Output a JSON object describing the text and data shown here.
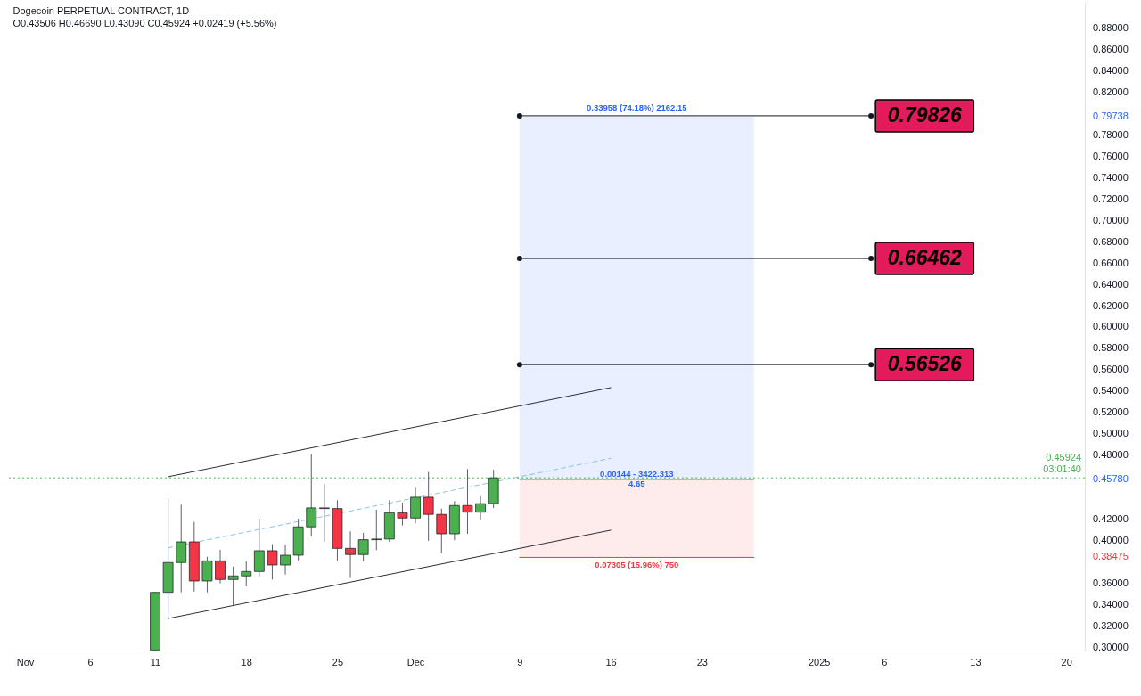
{
  "chart_data": {
    "type": "candlestick",
    "title": "Dogecoin PERPETUAL CONTRACT, 1D",
    "subtitle": "O0.43506 H0.46690 L0.43090 C0.45924 +0.02419 (+5.56%)",
    "x": [
      "2024-11-11",
      "2024-11-12",
      "2024-11-13",
      "2024-11-14",
      "2024-11-15",
      "2024-11-16",
      "2024-11-17",
      "2024-11-18",
      "2024-11-19",
      "2024-11-20",
      "2024-11-21",
      "2024-11-22",
      "2024-11-23",
      "2024-11-24",
      "2024-11-25",
      "2024-11-26",
      "2024-11-27",
      "2024-11-28",
      "2024-11-29",
      "2024-11-30",
      "2024-12-01",
      "2024-12-02",
      "2024-12-03",
      "2024-12-04",
      "2024-12-05",
      "2024-12-06",
      "2024-12-07"
    ],
    "ohlc": [
      [
        0.298,
        0.352,
        0.298,
        0.352
      ],
      [
        0.352,
        0.4397,
        0.327,
        0.3799
      ],
      [
        0.3799,
        0.4341,
        0.352,
        0.3993
      ],
      [
        0.3993,
        0.418,
        0.3528,
        0.3626
      ],
      [
        0.3626,
        0.3854,
        0.352,
        0.3815
      ],
      [
        0.3815,
        0.3918,
        0.3604,
        0.364
      ],
      [
        0.364,
        0.3762,
        0.3395,
        0.3674
      ],
      [
        0.3674,
        0.3812,
        0.3576,
        0.3715
      ],
      [
        0.3715,
        0.421,
        0.367,
        0.391
      ],
      [
        0.391,
        0.3971,
        0.364,
        0.3776
      ],
      [
        0.3776,
        0.3966,
        0.3687,
        0.3868
      ],
      [
        0.3868,
        0.421,
        0.3818,
        0.4133
      ],
      [
        0.4133,
        0.4814,
        0.4043,
        0.4311
      ],
      [
        0.4311,
        0.4536,
        0.3993,
        0.4305
      ],
      [
        0.4305,
        0.4383,
        0.3818,
        0.3932
      ],
      [
        0.3932,
        0.4091,
        0.3654,
        0.3874
      ],
      [
        0.3874,
        0.4077,
        0.3812,
        0.4013
      ],
      [
        0.4013,
        0.4294,
        0.3916,
        0.4019
      ],
      [
        0.4019,
        0.4383,
        0.3993,
        0.4266
      ],
      [
        0.4266,
        0.4361,
        0.4146,
        0.4216
      ],
      [
        0.4216,
        0.45,
        0.4166,
        0.4411
      ],
      [
        0.4411,
        0.4647,
        0.4002,
        0.425
      ],
      [
        0.425,
        0.4305,
        0.3887,
        0.4068
      ],
      [
        0.4068,
        0.4375,
        0.4008,
        0.4333
      ],
      [
        0.4333,
        0.4675,
        0.4068,
        0.4271
      ],
      [
        0.4271,
        0.4419,
        0.4202,
        0.43506
      ],
      [
        0.43506,
        0.4669,
        0.4309,
        0.45924
      ]
    ],
    "colors": [
      "#4caf50",
      "#4caf50",
      "#4caf50",
      "#f23645",
      "#4caf50",
      "#f23645",
      "#4caf50",
      "#4caf50",
      "#4caf50",
      "#f23645",
      "#4caf50",
      "#4caf50",
      "#4caf50",
      "#f23645",
      "#f23645",
      "#f23645",
      "#4caf50",
      "#4caf50",
      "#4caf50",
      "#f23645",
      "#4caf50",
      "#f23645",
      "#f23645",
      "#4caf50",
      "#f23645",
      "#4caf50",
      "#4caf50"
    ],
    "series": [
      {
        "type": "line",
        "x": [
          "2024-12-09",
          "2024-12-27"
        ],
        "values": [
          0.4578,
          0.4578
        ],
        "lower": [
          0.4578,
          0.4578
        ],
        "upper": [
          0.79738,
          0.79738
        ],
        "color": "#2962ff"
      },
      {
        "type": "line",
        "x": [
          "2024-12-09",
          "2024-12-27"
        ],
        "values": [
          0.38475,
          0.38475
        ],
        "lower": [
          0.38475,
          0.38475
        ],
        "upper": [
          0.4578,
          0.4578
        ],
        "color": "#f23645"
      },
      {
        "type": "line",
        "x": [
          "2024-11-12",
          "2024-12-16"
        ],
        "values": [
          0.4603,
          0.5437
        ],
        "color": "#2a2e39"
      },
      {
        "type": "line",
        "x": [
          "2024-11-12",
          "2024-12-16"
        ],
        "values": [
          0.3275,
          0.4102
        ],
        "color": "#2a2e39"
      },
      {
        "type": "line",
        "x": [
          "2024-11-12",
          "2024-12-16"
        ],
        "values": [
          0.3937,
          0.4775
        ],
        "color": "#8cc2e0",
        "line_style": "dashed"
      },
      {
        "type": "line",
        "x": [
          "2024-12-09",
          "2025-01-05"
        ],
        "values": [
          0.79826,
          0.79826
        ],
        "color": "#131722",
        "marker": "circle",
        "value_labels": [
          null,
          "0.79826"
        ]
      },
      {
        "type": "line",
        "x": [
          "2024-12-09",
          "2025-01-05"
        ],
        "values": [
          0.66462,
          0.66462
        ],
        "color": "#131722",
        "marker": "circle",
        "value_labels": [
          null,
          "0.66462"
        ]
      },
      {
        "type": "line",
        "x": [
          "2024-12-09",
          "2025-01-05"
        ],
        "values": [
          0.56526,
          0.56526
        ],
        "color": "#131722",
        "marker": "circle",
        "value_labels": [
          null,
          "0.56526"
        ]
      }
    ],
    "ref_lines": [
      {
        "axis": "y",
        "value": 0.45924,
        "label": "0.45924\n03:01:40",
        "color": "#4caf50",
        "line_style": "dotted"
      }
    ],
    "annotations": [
      {
        "text": "0.33958 (74.18%) 2162.15",
        "x": "2024-12-18",
        "y": 0.79738
      },
      {
        "text": "0.00144 - 3422.313\n4.65",
        "x": "2024-12-18",
        "y": 0.4578
      },
      {
        "text": "0.07305 (15.96%) 750",
        "x": "2024-12-18",
        "y": 0.38475
      }
    ],
    "xlim": [
      "2024-10-31T01:00",
      "2025-01-21T02:00"
    ],
    "ylim": [
      0.2975,
      0.905
    ],
    "xticks": [
      {
        "value": "2024-11-01",
        "label": "Nov"
      },
      {
        "value": "2024-11-06",
        "label": "6"
      },
      {
        "value": "2024-11-11",
        "label": "11"
      },
      {
        "value": "2024-11-18",
        "label": "18"
      },
      {
        "value": "2024-11-25",
        "label": "25"
      },
      {
        "value": "2024-12-01",
        "label": "Dec"
      },
      {
        "value": "2024-12-09",
        "label": "9"
      },
      {
        "value": "2024-12-16",
        "label": "16"
      },
      {
        "value": "2024-12-23",
        "label": "23"
      },
      {
        "value": "2025-01-01",
        "label": "2025"
      },
      {
        "value": "2025-01-06",
        "label": "6"
      },
      {
        "value": "2025-01-13",
        "label": "13"
      },
      {
        "value": "2025-01-20",
        "label": "20"
      }
    ],
    "yticks": [
      {
        "value": 0.3,
        "label": "0.30000"
      },
      {
        "value": 0.32,
        "label": "0.32000"
      },
      {
        "value": 0.34,
        "label": "0.34000"
      },
      {
        "value": 0.36,
        "label": "0.36000"
      },
      0.38475,
      {
        "value": 0.4,
        "label": "0.40000"
      },
      {
        "value": 0.42,
        "label": "0.42000"
      },
      {
        "value": 0.4578,
        "label": "0.45780"
      },
      {
        "value": 0.48,
        "label": "0.48000"
      },
      {
        "value": 0.5,
        "label": "0.50000"
      },
      {
        "value": 0.52,
        "label": "0.52000"
      },
      {
        "value": 0.54,
        "label": "0.54000"
      },
      {
        "value": 0.56,
        "label": "0.56000"
      },
      {
        "value": 0.58,
        "label": "0.58000"
      },
      {
        "value": 0.6,
        "label": "0.60000"
      },
      {
        "value": 0.62,
        "label": "0.62000"
      },
      {
        "value": 0.64,
        "label": "0.64000"
      },
      {
        "value": 0.66,
        "label": "0.66000"
      },
      {
        "value": 0.68,
        "label": "0.68000"
      },
      {
        "value": 0.7,
        "label": "0.70000"
      },
      {
        "value": 0.72,
        "label": "0.72000"
      },
      {
        "value": 0.74,
        "label": "0.74000"
      },
      {
        "value": 0.76,
        "label": "0.76000"
      },
      {
        "value": 0.78,
        "label": "0.78000"
      },
      0.79738,
      {
        "value": 0.82,
        "label": "0.82000"
      },
      {
        "value": 0.84,
        "label": "0.84000"
      },
      {
        "value": 0.86,
        "label": "0.86000"
      },
      {
        "value": 0.88,
        "label": "0.88000"
      }
    ]
  }
}
